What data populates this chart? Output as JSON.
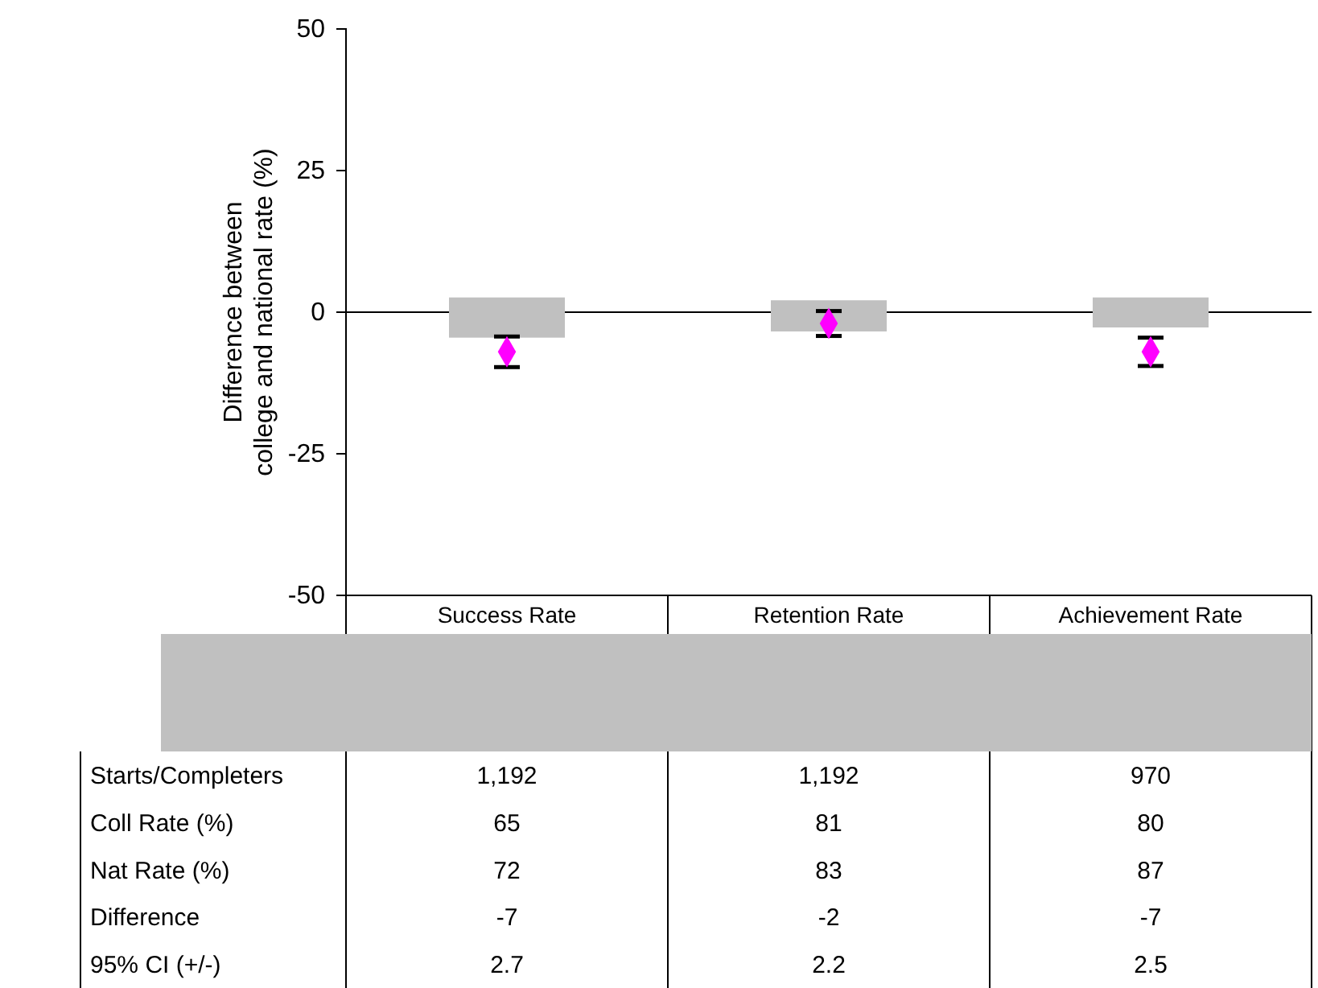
{
  "chart_data": {
    "type": "bar",
    "ylabel": "Difference between\ncollege and national rate (%)",
    "categories": [
      "Success Rate",
      "Retention Rate",
      "Achievement Rate"
    ],
    "series": [
      {
        "color": "#c0c0c0",
        "base": [
          -4.5,
          -3.4,
          -2.7
        ],
        "values": [
          7.1,
          5.5,
          5.3
        ]
      },
      {
        "type": "scatter",
        "color": "#ff00ff",
        "marker": "diamond",
        "values": [
          -7,
          -2,
          -7
        ],
        "errors": [
          2.7,
          2.2,
          2.5
        ],
        "data_labels": true
      }
    ],
    "ylim": [
      -50,
      50
    ],
    "yticks": [
      -50,
      -25,
      0,
      25,
      50
    ],
    "annotations": [
      "Starts/Completers",
      "Coll Rate (%)",
      "Nat Rate (%)",
      "Difference",
      "95% CI (+/-)",
      "1,192",
      "1,192",
      "970",
      "65",
      "81",
      "80",
      "72",
      "83",
      "87",
      "2.7",
      "2.2",
      "2.5"
    ]
  }
}
